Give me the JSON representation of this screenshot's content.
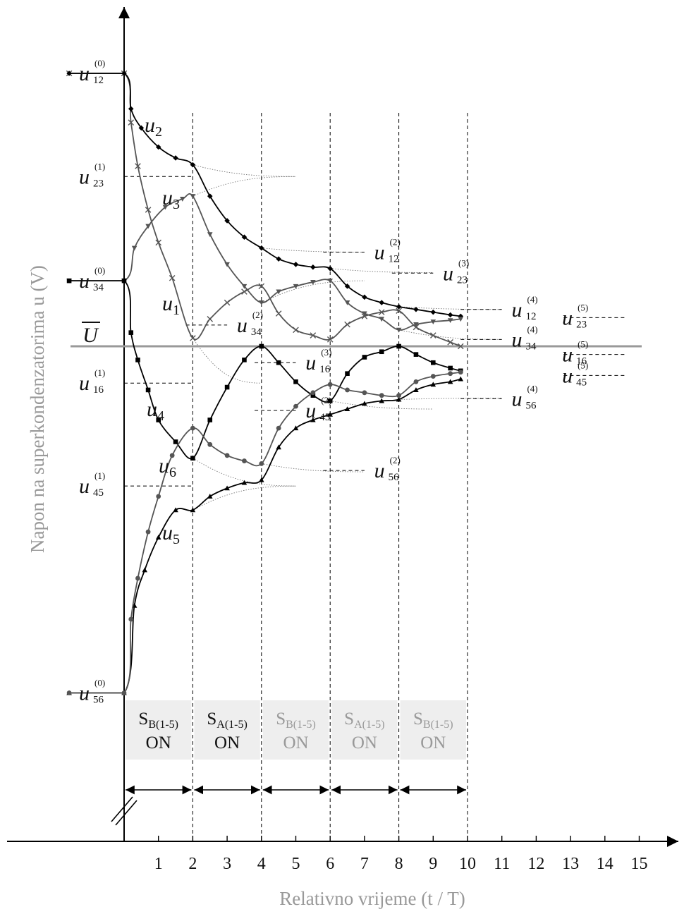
{
  "chart_data": {
    "type": "line",
    "title": "",
    "xlabel": "Relativno vrijeme (t / T)",
    "ylabel": "Napon na superkondenzatorima u (V)",
    "xlim": [
      -1.6,
      16
    ],
    "x_ticks": [
      "1",
      "2",
      "3",
      "4",
      "5",
      "6",
      "7",
      "8",
      "9",
      "10",
      "11",
      "12",
      "13",
      "14",
      "15"
    ],
    "mean_level": {
      "label": "Ū",
      "text": "U",
      "value": 0
    },
    "y_axis_labels": [
      {
        "base": "u",
        "sub": "12",
        "sup": "(0)",
        "y": 1.0
      },
      {
        "base": "u",
        "sub": "23",
        "sup": "(1)",
        "y": 0.622
      },
      {
        "base": "u",
        "sub": "34",
        "sup": "(0)",
        "y": 0.24
      },
      {
        "base": "u",
        "sub": "16",
        "sup": "(1)",
        "y": -0.135
      },
      {
        "base": "u",
        "sub": "45",
        "sup": "(1)",
        "y": -0.512
      },
      {
        "base": "u",
        "sub": "56",
        "sup": "(0)",
        "y": -1.27
      }
    ],
    "inner_labels": [
      {
        "base": "u",
        "sub": "34",
        "sup": "(2)",
        "x": 2.0,
        "y": 0.078
      },
      {
        "base": "u",
        "sub": "16",
        "sup": "(3)",
        "x": 4.0,
        "y": -0.06
      },
      {
        "base": "u",
        "sub": "45",
        "sup": "(3)",
        "x": 4.0,
        "y": -0.235
      },
      {
        "base": "u",
        "sub": "12",
        "sup": "(2)",
        "x": 6.0,
        "y": 0.345
      },
      {
        "base": "u",
        "sub": "56",
        "sup": "(2)",
        "x": 6.0,
        "y": -0.455
      },
      {
        "base": "u",
        "sub": "23",
        "sup": "(3)",
        "x": 8.0,
        "y": 0.268
      },
      {
        "base": "u",
        "sub": "12",
        "sup": "(4)",
        "x": 10.0,
        "y": 0.135
      },
      {
        "base": "u",
        "sub": "34",
        "sup": "(4)",
        "x": 10.0,
        "y": 0.025
      },
      {
        "base": "u",
        "sub": "56",
        "sup": "(4)",
        "x": 10.0,
        "y": -0.192
      },
      {
        "base": "u",
        "sub": "23",
        "sup": "(5)",
        "x": 13.0,
        "y": 0.105
      },
      {
        "base": "u",
        "sub": "16",
        "sup": "(5)",
        "x": 13.0,
        "y": -0.03
      },
      {
        "base": "u",
        "sub": "45",
        "sup": "(5)",
        "x": 13.0,
        "y": -0.107
      }
    ],
    "curve_labels": [
      "u1",
      "u2",
      "u3",
      "u4",
      "u5",
      "u6"
    ],
    "switch_phases": [
      {
        "label": "S",
        "sub": "B(1-5)",
        "state": "ON",
        "from": 0,
        "to": 2
      },
      {
        "label": "S",
        "sub": "A(1-5)",
        "state": "ON",
        "from": 2,
        "to": 4
      },
      {
        "label": "S",
        "sub": "B(1-5)",
        "state": "ON",
        "from": 4,
        "to": 6
      },
      {
        "label": "S",
        "sub": "A(1-5)",
        "state": "ON",
        "from": 6,
        "to": 8
      },
      {
        "label": "S",
        "sub": "B(1-5)",
        "state": "ON",
        "from": 8,
        "to": 10
      }
    ],
    "series": [
      {
        "name": "u1",
        "marker": "x",
        "color": "#555555",
        "x": [
          -1.6,
          0,
          0.2,
          0.4,
          0.7,
          1.0,
          1.4,
          2.0,
          2.5,
          3.0,
          3.5,
          4.0,
          4.5,
          5.0,
          5.5,
          6.0,
          6.5,
          7.0,
          7.5,
          8.0,
          8.5,
          9.0,
          9.5,
          9.8
        ],
        "y": [
          1.0,
          1.0,
          0.82,
          0.66,
          0.5,
          0.38,
          0.25,
          0.03,
          0.1,
          0.16,
          0.2,
          0.22,
          0.12,
          0.06,
          0.04,
          0.025,
          0.08,
          0.11,
          0.125,
          0.13,
          0.07,
          0.04,
          0.015,
          0.0
        ]
      },
      {
        "name": "u2",
        "marker": "diamond",
        "color": "#000000",
        "x": [
          -1.6,
          0,
          0.2,
          0.5,
          1.0,
          1.5,
          2.0,
          2.5,
          3.0,
          3.5,
          4.0,
          4.5,
          5.0,
          5.5,
          6.0,
          6.5,
          7.0,
          7.5,
          8.0,
          8.5,
          9.0,
          9.5,
          9.8
        ],
        "y": [
          1.0,
          1.0,
          0.87,
          0.8,
          0.73,
          0.69,
          0.665,
          0.55,
          0.46,
          0.4,
          0.36,
          0.32,
          0.3,
          0.29,
          0.285,
          0.22,
          0.18,
          0.16,
          0.145,
          0.135,
          0.125,
          0.115,
          0.11
        ]
      },
      {
        "name": "u3",
        "marker": "triangle-down",
        "color": "#555555",
        "x": [
          -1.6,
          0,
          0.3,
          0.7,
          1.2,
          1.7,
          2.0,
          2.5,
          3.0,
          3.5,
          4.0,
          4.5,
          5.0,
          5.5,
          6.0,
          6.5,
          7.0,
          7.5,
          8.0,
          8.5,
          9.0,
          9.5,
          9.8
        ],
        "y": [
          0.24,
          0.24,
          0.36,
          0.44,
          0.51,
          0.54,
          0.55,
          0.41,
          0.3,
          0.22,
          0.16,
          0.2,
          0.22,
          0.235,
          0.24,
          0.16,
          0.12,
          0.1,
          0.06,
          0.08,
          0.09,
          0.095,
          0.1
        ]
      },
      {
        "name": "u4",
        "marker": "square",
        "color": "#000000",
        "x": [
          -1.6,
          0,
          0.2,
          0.4,
          0.7,
          1.0,
          1.5,
          2.0,
          2.5,
          3.0,
          3.5,
          4.0,
          4.5,
          5.0,
          5.5,
          6.0,
          6.5,
          7.0,
          7.5,
          8.0,
          8.5,
          9.0,
          9.5,
          9.8
        ],
        "y": [
          0.24,
          0.24,
          0.05,
          -0.05,
          -0.16,
          -0.27,
          -0.35,
          -0.41,
          -0.27,
          -0.15,
          -0.05,
          0.0,
          -0.06,
          -0.13,
          -0.18,
          -0.2,
          -0.1,
          -0.04,
          -0.02,
          0.0,
          -0.03,
          -0.06,
          -0.08,
          -0.09
        ]
      },
      {
        "name": "u5",
        "marker": "triangle-up",
        "color": "#000000",
        "x": [
          -1.6,
          0,
          0.3,
          0.6,
          1.0,
          1.5,
          2.0,
          2.5,
          3.0,
          3.5,
          4.0,
          4.5,
          5.0,
          5.5,
          6.0,
          6.5,
          7.0,
          7.5,
          8.0,
          8.5,
          9.0,
          9.5,
          9.8
        ],
        "y": [
          -1.27,
          -1.27,
          -0.95,
          -0.82,
          -0.7,
          -0.6,
          -0.6,
          -0.55,
          -0.52,
          -0.5,
          -0.49,
          -0.37,
          -0.3,
          -0.27,
          -0.25,
          -0.23,
          -0.21,
          -0.2,
          -0.195,
          -0.16,
          -0.14,
          -0.13,
          -0.12
        ]
      },
      {
        "name": "u6",
        "marker": "circle",
        "color": "#555555",
        "x": [
          -1.6,
          0,
          0.2,
          0.4,
          0.7,
          1.0,
          1.4,
          2.0,
          2.5,
          3.0,
          3.5,
          4.0,
          4.5,
          5.0,
          5.5,
          6.0,
          6.5,
          7.0,
          7.5,
          8.0,
          8.5,
          9.0,
          9.5,
          9.8
        ],
        "y": [
          -1.27,
          -1.27,
          -1.0,
          -0.85,
          -0.68,
          -0.55,
          -0.4,
          -0.3,
          -0.36,
          -0.4,
          -0.42,
          -0.43,
          -0.3,
          -0.22,
          -0.17,
          -0.14,
          -0.16,
          -0.17,
          -0.18,
          -0.18,
          -0.13,
          -0.11,
          -0.1,
          -0.095
        ]
      }
    ]
  }
}
